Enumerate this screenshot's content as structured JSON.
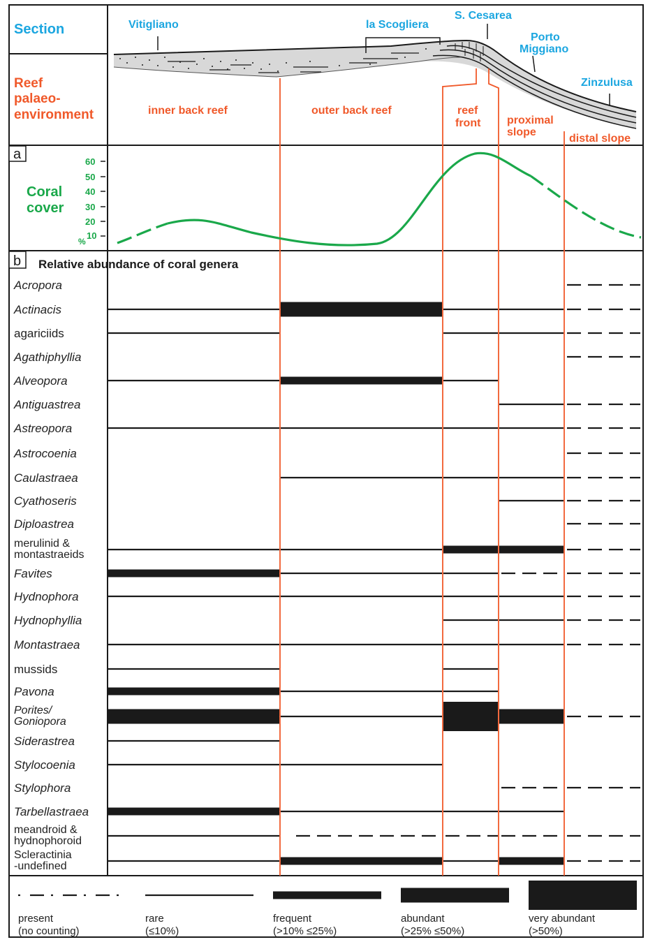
{
  "header": {
    "section_title": "Section",
    "env_title": [
      "Reef",
      "palaeo-",
      "environment"
    ],
    "localities": {
      "vitigliano": "Vitigliano",
      "scogliera": "la Scogliera",
      "cesarea": "S. Cesarea",
      "porto": [
        "Porto",
        "Miggiano"
      ],
      "zinzulusa": "Zinzulusa"
    },
    "environments": {
      "inner": "inner back reef",
      "outer": "outer back reef",
      "reef_front": [
        "reef",
        "front"
      ],
      "proximal": [
        "proximal",
        "slope"
      ],
      "distal": "distal slope"
    }
  },
  "panel_a": {
    "letter": "a",
    "title": [
      "Coral",
      "cover"
    ],
    "unit": "%",
    "ticks": [
      "60",
      "50",
      "40",
      "30",
      "20",
      "10"
    ]
  },
  "panel_b": {
    "letter": "b",
    "title": "Relative abundance of coral genera"
  },
  "genera": [
    {
      "name": [
        "Acropora"
      ],
      "italic": true,
      "segs": [
        "",
        "",
        "",
        "",
        "p"
      ]
    },
    {
      "name": [
        "Actinacis"
      ],
      "italic": true,
      "segs": [
        "r",
        "a",
        "r",
        "r",
        "p"
      ]
    },
    {
      "name": [
        "agariciids"
      ],
      "italic": false,
      "segs": [
        "r",
        "",
        "r",
        "r",
        "p"
      ]
    },
    {
      "name": [
        "Agathiphyllia"
      ],
      "italic": true,
      "segs": [
        "",
        "",
        "",
        "",
        "p"
      ]
    },
    {
      "name": [
        "Alveopora"
      ],
      "italic": true,
      "segs": [
        "r",
        "f",
        "r",
        "",
        ""
      ]
    },
    {
      "name": [
        "Antiguastrea"
      ],
      "italic": true,
      "segs": [
        "",
        "",
        "",
        "r",
        "p"
      ]
    },
    {
      "name": [
        "Astreopora"
      ],
      "italic": true,
      "segs": [
        "r",
        "r",
        "r",
        "r",
        "p"
      ]
    },
    {
      "name": [
        "Astrocoenia"
      ],
      "italic": true,
      "segs": [
        "",
        "",
        "",
        "",
        "p"
      ]
    },
    {
      "name": [
        "Caulastraea"
      ],
      "italic": true,
      "segs": [
        "",
        "r",
        "r",
        "r",
        "p"
      ]
    },
    {
      "name": [
        "Cyathoseris"
      ],
      "italic": true,
      "segs": [
        "",
        "",
        "",
        "r",
        "p"
      ]
    },
    {
      "name": [
        "Diploastrea"
      ],
      "italic": true,
      "segs": [
        "",
        "",
        "",
        "",
        "p"
      ]
    },
    {
      "name": [
        "merulinid &",
        "montastraeids"
      ],
      "italic": false,
      "segs": [
        "r",
        "r",
        "f",
        "f",
        "p"
      ]
    },
    {
      "name": [
        "Favites"
      ],
      "italic": true,
      "segs": [
        "f",
        "r",
        "r",
        "p",
        "p"
      ]
    },
    {
      "name": [
        "Hydnophora"
      ],
      "italic": true,
      "segs": [
        "r",
        "r",
        "r",
        "r",
        "p"
      ]
    },
    {
      "name": [
        "Hydnophyllia"
      ],
      "italic": true,
      "segs": [
        "",
        "",
        "r",
        "r",
        "p"
      ]
    },
    {
      "name": [
        "Montastraea"
      ],
      "italic": true,
      "segs": [
        "r",
        "r",
        "r",
        "r",
        "p"
      ]
    },
    {
      "name": [
        "mussids"
      ],
      "italic": false,
      "segs": [
        "r",
        "",
        "r",
        "",
        ""
      ]
    },
    {
      "name": [
        "Pavona"
      ],
      "italic": true,
      "segs": [
        "f",
        "r",
        "r",
        "",
        ""
      ]
    },
    {
      "name": [
        "Porites/",
        "Goniopora"
      ],
      "italic": true,
      "segs": [
        "a",
        "r",
        "v",
        "a",
        "p"
      ]
    },
    {
      "name": [
        "Siderastrea"
      ],
      "italic": true,
      "segs": [
        "r",
        "",
        "",
        "",
        ""
      ]
    },
    {
      "name": [
        "Stylocoenia"
      ],
      "italic": true,
      "segs": [
        "r",
        "r",
        "",
        "",
        ""
      ]
    },
    {
      "name": [
        "Stylophora"
      ],
      "italic": true,
      "segs": [
        "",
        "",
        "",
        "p",
        "p"
      ]
    },
    {
      "name": [
        "Tarbellastraea"
      ],
      "italic": true,
      "segs": [
        "f",
        "r",
        "r",
        "r",
        ""
      ]
    },
    {
      "name": [
        "meandroid &",
        "hydnophoroid"
      ],
      "italic": false,
      "segs": [
        "r",
        "p",
        "p",
        "p",
        "p"
      ]
    },
    {
      "name": [
        "Scleractinia",
        "-undefined"
      ],
      "italic": false,
      "segs": [
        "r",
        "f",
        "r",
        "f",
        "p"
      ]
    }
  ],
  "legend": [
    {
      "code": "p",
      "label": "present",
      "sub": "(no counting)"
    },
    {
      "code": "r",
      "label": "rare",
      "sub": "(≤10%)"
    },
    {
      "code": "f",
      "label": "frequent",
      "sub": "(>10% ≤25%)"
    },
    {
      "code": "a",
      "label": "abundant",
      "sub": "(>25% ≤50%)"
    },
    {
      "code": "v",
      "label": "very abundant",
      "sub": "(>50%)"
    }
  ],
  "colors": {
    "blue": "#1ba6e0",
    "red": "#f0592a",
    "green": "#1aa84a",
    "black": "#1a1a1a"
  }
}
